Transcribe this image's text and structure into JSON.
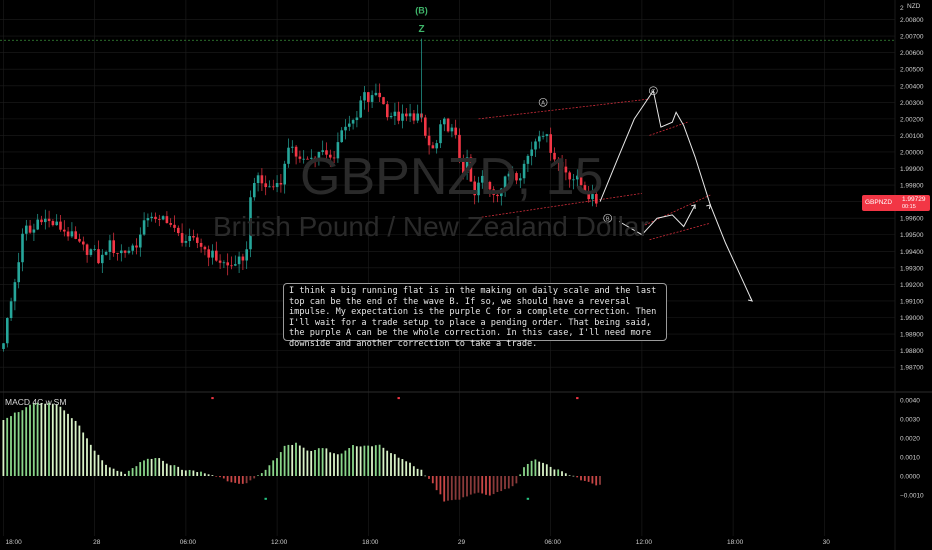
{
  "chart_data": [
    {
      "type": "candlestick",
      "symbol_watermark": "GBPNZD, 15",
      "name_watermark": "British Pound / New Zealand Dollar",
      "currency_label": "NZD",
      "price_axis": {
        "range": [
          1.9855,
          2.009
        ],
        "ticks": [
          "2.00800",
          "2.00700",
          "2.00600",
          "2.00500",
          "2.00400",
          "2.00300",
          "2.00200",
          "2.00100",
          "2.00000",
          "1.99900",
          "1.99800",
          "1.99700",
          "1.99600",
          "1.99500",
          "1.99400",
          "1.99300",
          "1.99200",
          "1.99100",
          "1.99000",
          "1.98900",
          "1.98800",
          "1.98700"
        ],
        "top_partial_label": "2"
      },
      "time_axis": {
        "ticks": [
          {
            "label": "18:00",
            "i": 0
          },
          {
            "label": "28",
            "i": 24
          },
          {
            "label": "06:00",
            "i": 48
          },
          {
            "label": "12:00",
            "i": 72
          },
          {
            "label": "18:00",
            "i": 96
          },
          {
            "label": "29",
            "i": 120
          },
          {
            "label": "06:00",
            "i": 144
          },
          {
            "label": "12:00",
            "i": 168
          },
          {
            "label": "18:00",
            "i": 192
          },
          {
            "label": "30",
            "i": 216
          }
        ]
      },
      "last_price": {
        "symbol": "GBPNZD",
        "value": "1.99729",
        "countdown": "00:15"
      },
      "wave_labels": [
        {
          "text": "(B)",
          "i": 110,
          "price": 2.0086
        },
        {
          "text": "Z",
          "i": 110,
          "price": 2.0075
        },
        {
          "text": "A",
          "i": 142,
          "price": 2.003
        },
        {
          "text": "B",
          "i": 159,
          "price": 1.996
        },
        {
          "text": "C",
          "i": 171,
          "price": 2.0037
        }
      ],
      "horizontal_level": 2.00675,
      "candle_anchors": [
        [
          0,
          1.9881
        ],
        [
          3,
          1.9915
        ],
        [
          6,
          1.9955
        ],
        [
          8,
          1.995
        ],
        [
          10,
          1.9962
        ],
        [
          12,
          1.9958
        ],
        [
          15,
          1.9955
        ],
        [
          18,
          1.995
        ],
        [
          21,
          1.9942
        ],
        [
          24,
          1.994
        ],
        [
          26,
          1.9933
        ],
        [
          28,
          1.9945
        ],
        [
          30,
          1.994
        ],
        [
          33,
          1.994
        ],
        [
          36,
          1.9946
        ],
        [
          39,
          1.9965
        ],
        [
          41,
          1.9955
        ],
        [
          43,
          1.9962
        ],
        [
          46,
          1.995
        ],
        [
          49,
          1.9946
        ],
        [
          52,
          1.9945
        ],
        [
          54,
          1.994
        ],
        [
          57,
          1.9935
        ],
        [
          60,
          1.993
        ],
        [
          62,
          1.9935
        ],
        [
          64,
          1.993
        ],
        [
          66,
          1.9985
        ],
        [
          69,
          1.998
        ],
        [
          71,
          1.9978
        ],
        [
          74,
          1.9985
        ],
        [
          76,
          2.001
        ],
        [
          78,
          1.999
        ],
        [
          80,
          2.0
        ],
        [
          82,
          1.9995
        ],
        [
          84,
          2.0
        ],
        [
          87,
          1.9995
        ],
        [
          89,
          2.001
        ],
        [
          91,
          2.002
        ],
        [
          93,
          2.0015
        ],
        [
          95,
          2.0035
        ],
        [
          97,
          2.003
        ],
        [
          99,
          2.0038
        ],
        [
          101,
          2.0025
        ],
        [
          103,
          2.0022
        ],
        [
          106,
          2.002
        ],
        [
          108,
          2.0022
        ],
        [
          110,
          2.0022
        ],
        [
          112,
          2.0005
        ],
        [
          114,
          2.0
        ],
        [
          116,
          2.0018
        ],
        [
          118,
          2.0015
        ],
        [
          120,
          2.0005
        ],
        [
          121,
          1.9988
        ],
        [
          123,
          1.9995
        ],
        [
          124,
          1.9968
        ],
        [
          126,
          1.9985
        ],
        [
          128,
          1.998
        ],
        [
          130,
          1.9975
        ],
        [
          132,
          1.998
        ],
        [
          134,
          1.999
        ],
        [
          136,
          1.9985
        ],
        [
          138,
          1.9995
        ],
        [
          140,
          2.0005
        ],
        [
          142,
          2.0015
        ],
        [
          144,
          2.0005
        ],
        [
          146,
          1.9995
        ],
        [
          148,
          1.999
        ],
        [
          150,
          1.9985
        ],
        [
          152,
          1.9982
        ],
        [
          154,
          1.9975
        ],
        [
          156,
          1.997
        ]
      ],
      "projection_path": [
        [
          157,
          1.997
        ],
        [
          162,
          1.9998
        ],
        [
          166,
          2.002
        ],
        [
          171,
          2.0037
        ],
        [
          173,
          2.0015
        ],
        [
          176,
          2.0018
        ],
        [
          177,
          2.0024
        ],
        [
          179,
          2.0016
        ],
        [
          182,
          1.9997
        ],
        [
          186,
          1.9968
        ],
        [
          190,
          1.9945
        ],
        [
          195,
          1.992
        ],
        [
          197,
          1.991
        ]
      ],
      "projection_inner": [
        [
          162,
          1.9958
        ],
        [
          168,
          1.995
        ],
        [
          172,
          1.996
        ],
        [
          176,
          1.9962
        ],
        [
          179,
          1.9955
        ],
        [
          182,
          1.9968
        ]
      ],
      "channel_lines": [
        {
          "from": [
            125,
            2.002
          ],
          "to": [
            170,
            2.0032
          ]
        },
        {
          "from": [
            124,
            1.996
          ],
          "to": [
            168,
            1.9975
          ]
        },
        {
          "from": [
            170,
            2.001
          ],
          "to": [
            180,
            2.0018
          ]
        },
        {
          "from": [
            168,
            1.9955
          ],
          "to": [
            186,
            1.9974
          ]
        },
        {
          "from": [
            170,
            1.9947
          ],
          "to": [
            186,
            1.9957
          ]
        }
      ]
    },
    {
      "type": "bar",
      "title": "MACD 4C w.SM",
      "value_axis": {
        "range": [
          -0.012,
          0.042
        ],
        "ticks": [
          "0.0040",
          "0.0030",
          "0.0020",
          "0.0010",
          "0.0000",
          "−0.0010"
        ],
        "tick_values": [
          0.004,
          0.003,
          0.002,
          0.001,
          0.0,
          -0.001
        ]
      },
      "histogram_anchors": [
        [
          0,
          0.003
        ],
        [
          8,
          0.0038
        ],
        [
          14,
          0.0038
        ],
        [
          18,
          0.0031
        ],
        [
          20,
          0.0026
        ],
        [
          24,
          0.0013
        ],
        [
          28,
          0.0004
        ],
        [
          32,
          0.0001
        ],
        [
          36,
          0.0007
        ],
        [
          40,
          0.001
        ],
        [
          44,
          0.0006
        ],
        [
          48,
          0.0003
        ],
        [
          52,
          0.0002
        ],
        [
          56,
          0.0
        ],
        [
          60,
          -0.0003
        ],
        [
          64,
          -0.0004
        ],
        [
          68,
          0.0001
        ],
        [
          72,
          0.001
        ],
        [
          74,
          0.0016
        ],
        [
          77,
          0.0017
        ],
        [
          80,
          0.0013
        ],
        [
          84,
          0.0015
        ],
        [
          88,
          0.0011
        ],
        [
          92,
          0.0016
        ],
        [
          96,
          0.0016
        ],
        [
          99,
          0.0016
        ],
        [
          102,
          0.0012
        ],
        [
          106,
          0.0008
        ],
        [
          110,
          0.0003
        ],
        [
          113,
          -0.0004
        ],
        [
          116,
          -0.0013
        ],
        [
          120,
          -0.0012
        ],
        [
          124,
          -0.0009
        ],
        [
          128,
          -0.001
        ],
        [
          132,
          -0.0007
        ],
        [
          135,
          -0.0004
        ],
        [
          137,
          0.0005
        ],
        [
          140,
          0.0009
        ],
        [
          144,
          0.0005
        ],
        [
          148,
          0.0001
        ],
        [
          152,
          -0.0002
        ],
        [
          157,
          -0.0005
        ]
      ],
      "markers": [
        {
          "i": 55,
          "value": 0.0041,
          "color": "#f23645"
        },
        {
          "i": 104,
          "value": 0.0041,
          "color": "#f23645"
        },
        {
          "i": 151,
          "value": 0.0041,
          "color": "#f23645"
        },
        {
          "i": 69,
          "value": -0.0012,
          "color": "#26c281"
        },
        {
          "i": 138,
          "value": -0.0012,
          "color": "#26c281"
        }
      ]
    }
  ],
  "note": "I think a big running flat is in the making on daily scale and the last top can be the end of the wave B. If so, we should have a reversal impulse. My expectation is the purple C for a complete correction. Then I'll wait for a trade setup to place a pending order. That being said, the purple A can be the whole correction. In this case, I'll need more downside and another correction to take a trade.",
  "colors": {
    "up": "#26a69a",
    "down": "#f23645",
    "up_light": "#89d58a",
    "hist_light": "#d9f3c8",
    "hist_dark": "#5a1a1a",
    "grid": "#1d1d1d",
    "channel": "#f23645",
    "level": "#3a8f3a",
    "wave_green": "#3fb56a",
    "axis_text": "#cfcfcf"
  }
}
